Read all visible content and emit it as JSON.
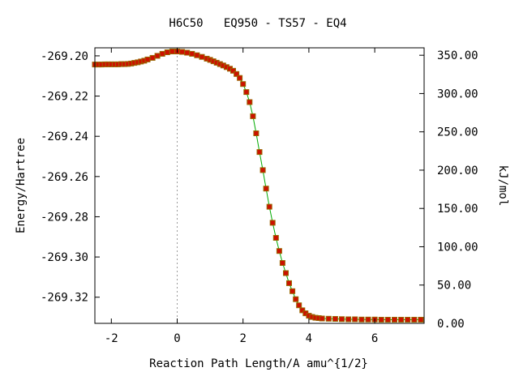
{
  "chart_data": {
    "type": "line",
    "title": "H6C50   EQ950 - TS57 - EQ4",
    "xlabel": "Reaction Path Length/A amu^{1/2}",
    "ylabel": "Energy/Hartree",
    "y2label": "kJ/mol",
    "xlim": [
      -2.5,
      7.5
    ],
    "ylim": [
      -269.333,
      -269.196
    ],
    "y2lim": [
      0,
      359.7
    ],
    "xticks": [
      -2,
      0,
      2,
      4,
      6
    ],
    "xtick_labels": [
      "-2",
      "0",
      "2",
      "4",
      "6"
    ],
    "yticks": [
      -269.2,
      -269.22,
      -269.24,
      -269.26,
      -269.28,
      -269.3,
      -269.32
    ],
    "ytick_labels": [
      "-269.20",
      "-269.22",
      "-269.24",
      "-269.26",
      "-269.28",
      "-269.30",
      "-269.32"
    ],
    "y2ticks": [
      0,
      50,
      100,
      150,
      200,
      250,
      300,
      350
    ],
    "y2tick_labels": [
      "0.00",
      "50.00",
      "100.00",
      "150.00",
      "200.00",
      "250.00",
      "300.00",
      "350.00"
    ],
    "ts_x": 0,
    "line_color": "#00aa00",
    "marker_color": "#cc1100",
    "marker_edge_color": "#996600",
    "series": [
      {
        "x": [
          -2.5,
          -2.4,
          -2.3,
          -2.2,
          -2.1,
          -2.0,
          -1.9,
          -1.8,
          -1.7,
          -1.6,
          -1.5,
          -1.4,
          -1.3,
          -1.2,
          -1.1,
          -1.0,
          -0.9,
          -0.75,
          -0.6,
          -0.45,
          -0.3,
          -0.15,
          0.0,
          0.15,
          0.3,
          0.45,
          0.6,
          0.75,
          0.9,
          1.0,
          1.1,
          1.2,
          1.3,
          1.4,
          1.5,
          1.6,
          1.7,
          1.8,
          1.9,
          2.0,
          2.1,
          2.2,
          2.3,
          2.4,
          2.5,
          2.6,
          2.7,
          2.8,
          2.9,
          3.0,
          3.1,
          3.2,
          3.3,
          3.4,
          3.5,
          3.6,
          3.7,
          3.8,
          3.9,
          4.0,
          4.1,
          4.2,
          4.3,
          4.4,
          4.6,
          4.8,
          5.0,
          5.2,
          5.4,
          5.6,
          5.8,
          6.0,
          6.2,
          6.4,
          6.6,
          6.8,
          7.0,
          7.2,
          7.4
        ],
        "y": [
          -269.2043,
          -269.2043,
          -269.2043,
          -269.2042,
          -269.2042,
          -269.2042,
          -269.2042,
          -269.2042,
          -269.2041,
          -269.2041,
          -269.204,
          -269.2038,
          -269.2035,
          -269.2032,
          -269.2028,
          -269.2024,
          -269.2018,
          -269.201,
          -269.2,
          -269.199,
          -269.1982,
          -269.1978,
          -269.1978,
          -269.198,
          -269.1984,
          -269.199,
          -269.1997,
          -269.2005,
          -269.2014,
          -269.202,
          -269.2027,
          -269.2034,
          -269.2041,
          -269.2048,
          -269.2056,
          -269.2064,
          -269.2074,
          -269.209,
          -269.211,
          -269.214,
          -269.218,
          -269.223,
          -269.23,
          -269.2385,
          -269.2478,
          -269.2568,
          -269.266,
          -269.275,
          -269.283,
          -269.2905,
          -269.297,
          -269.303,
          -269.308,
          -269.313,
          -269.317,
          -269.321,
          -269.324,
          -269.3265,
          -269.328,
          -269.3292,
          -269.3298,
          -269.3302,
          -269.3304,
          -269.3306,
          -269.3307,
          -269.3308,
          -269.3309,
          -269.331,
          -269.331,
          -269.3311,
          -269.3311,
          -269.3311,
          -269.3312,
          -269.3312,
          -269.3312,
          -269.3312,
          -269.3312,
          -269.3312,
          -269.3312
        ]
      }
    ]
  }
}
